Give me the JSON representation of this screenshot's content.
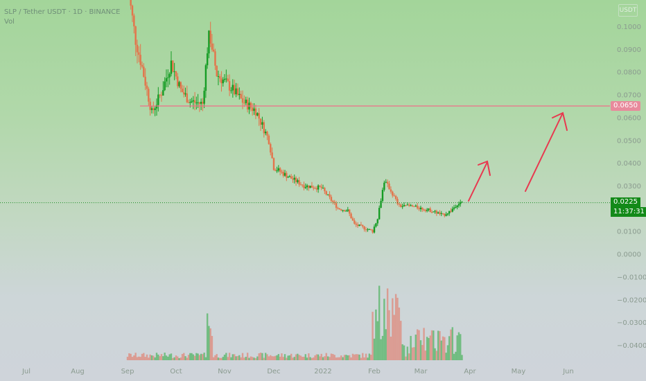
{
  "header": {
    "symbol_line": "SLP / Tether USDT · 1D · BINANCE",
    "volume_label": "Vol"
  },
  "toolbar": {
    "settings_label": "USDT"
  },
  "chart_data": {
    "type": "candlestick",
    "title": "",
    "price_axis": {
      "ticks": [
        "0.1000",
        "0.0900",
        "0.0800",
        "0.0700",
        "0.0600",
        "0.0500",
        "0.0400",
        "0.0300",
        "0.0100",
        "0.0000",
        "−0.0100",
        "−0.0200",
        "−0.0300",
        "−0.0400"
      ],
      "tick_values": [
        0.1,
        0.09,
        0.08,
        0.07,
        0.06,
        0.05,
        0.04,
        0.03,
        0.01,
        0.0,
        -0.01,
        -0.02,
        -0.03,
        -0.04
      ]
    },
    "time_axis": {
      "labels": [
        "Jul",
        "Aug",
        "Sep",
        "Oct",
        "Nov",
        "Dec",
        "2022",
        "Feb",
        "Mar",
        "Apr",
        "May",
        "Jun"
      ]
    },
    "horizontal_line": {
      "price": 0.065,
      "label": "0.0650",
      "color": "#f06a8a"
    },
    "last_price": {
      "price": 0.0225,
      "label": "0.0225",
      "countdown": "11:37:31",
      "color": "#138a19"
    },
    "colors": {
      "up": "#159c24",
      "down": "#e4734a",
      "projection_arrow": "#e8384f"
    },
    "price_path": [
      [
        "2021-09-01",
        0.118
      ],
      [
        "2021-09-06",
        0.094
      ],
      [
        "2021-09-10",
        0.082
      ],
      [
        "2021-09-16",
        0.062
      ],
      [
        "2021-09-22",
        0.071
      ],
      [
        "2021-09-28",
        0.084
      ],
      [
        "2021-10-04",
        0.072
      ],
      [
        "2021-10-10",
        0.067
      ],
      [
        "2021-10-18",
        0.066
      ],
      [
        "2021-10-22",
        0.098
      ],
      [
        "2021-10-27",
        0.079
      ],
      [
        "2021-11-05",
        0.073
      ],
      [
        "2021-11-12",
        0.067
      ],
      [
        "2021-11-20",
        0.063
      ],
      [
        "2021-11-28",
        0.05
      ],
      [
        "2021-12-01",
        0.038
      ],
      [
        "2021-12-10",
        0.034
      ],
      [
        "2021-12-20",
        0.03
      ],
      [
        "2021-12-31",
        0.029
      ],
      [
        "2022-01-10",
        0.02
      ],
      [
        "2022-01-16",
        0.019
      ],
      [
        "2022-01-20",
        0.013
      ],
      [
        "2022-01-31",
        0.01
      ],
      [
        "2022-02-03",
        0.016
      ],
      [
        "2022-02-07",
        0.032
      ],
      [
        "2022-02-10",
        0.029
      ],
      [
        "2022-02-16",
        0.021
      ],
      [
        "2022-02-23",
        0.021
      ],
      [
        "2022-03-08",
        0.019
      ],
      [
        "2022-03-15",
        0.017
      ],
      [
        "2022-03-20",
        0.019
      ],
      [
        "2022-03-24",
        0.022
      ],
      [
        "2022-03-27",
        0.0225
      ]
    ]
  }
}
